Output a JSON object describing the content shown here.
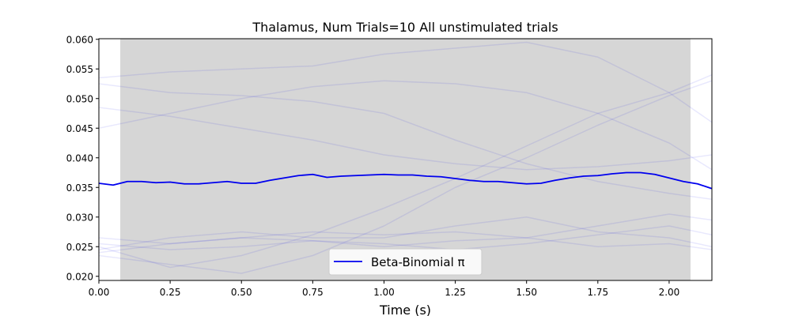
{
  "chart_data": {
    "type": "line",
    "title": "Thalamus, Num Trials=10 All unstimulated trials",
    "xlabel": "Time (s)",
    "ylabel": "",
    "xlim": [
      0.0,
      2.15
    ],
    "ylim": [
      0.0193,
      0.0601
    ],
    "xticks": [
      0.0,
      0.25,
      0.5,
      0.75,
      1.0,
      1.25,
      1.5,
      1.75,
      2.0
    ],
    "xtick_labels": [
      "0.00",
      "0.25",
      "0.50",
      "0.75",
      "1.00",
      "1.25",
      "1.50",
      "1.75",
      "2.00"
    ],
    "yticks": [
      0.02,
      0.025,
      0.03,
      0.035,
      0.04,
      0.045,
      0.05,
      0.055,
      0.06
    ],
    "ytick_labels": [
      "0.020",
      "0.025",
      "0.030",
      "0.035",
      "0.040",
      "0.045",
      "0.050",
      "0.055",
      "0.060"
    ],
    "grid": false,
    "legend_position": "lower-center",
    "shaded_region": {
      "x": [
        0.075,
        2.075
      ],
      "color": "#d6d6d6"
    },
    "series": [
      {
        "name": "Beta-Binomial π",
        "color": "#0000ee",
        "emphasis": true,
        "x": [
          0.0,
          0.05,
          0.1,
          0.15,
          0.2,
          0.25,
          0.3,
          0.35,
          0.4,
          0.45,
          0.5,
          0.55,
          0.6,
          0.65,
          0.7,
          0.75,
          0.8,
          0.85,
          0.9,
          0.95,
          1.0,
          1.05,
          1.1,
          1.15,
          1.2,
          1.25,
          1.3,
          1.35,
          1.4,
          1.45,
          1.5,
          1.55,
          1.6,
          1.65,
          1.7,
          1.75,
          1.8,
          1.85,
          1.9,
          1.95,
          2.0,
          2.05,
          2.1,
          2.15
        ],
        "values": [
          0.0357,
          0.0354,
          0.036,
          0.036,
          0.0358,
          0.0359,
          0.0356,
          0.0356,
          0.0358,
          0.036,
          0.0357,
          0.0357,
          0.0362,
          0.0366,
          0.037,
          0.0372,
          0.0367,
          0.0369,
          0.037,
          0.0371,
          0.0372,
          0.0371,
          0.0371,
          0.0369,
          0.0368,
          0.0365,
          0.0362,
          0.036,
          0.036,
          0.0358,
          0.0356,
          0.0357,
          0.0362,
          0.0366,
          0.0369,
          0.037,
          0.0373,
          0.0375,
          0.0375,
          0.0372,
          0.0366,
          0.036,
          0.0356,
          0.0348
        ]
      },
      {
        "color": "#0000ee",
        "emphasis": false,
        "x": [
          0.0,
          0.25,
          0.5,
          0.75,
          1.0,
          1.25,
          1.5,
          1.75,
          2.0,
          2.15
        ],
        "values": [
          0.0525,
          0.051,
          0.0505,
          0.0495,
          0.0475,
          0.043,
          0.039,
          0.036,
          0.034,
          0.033
        ]
      },
      {
        "color": "#0000ee",
        "emphasis": false,
        "x": [
          0.0,
          0.25,
          0.5,
          0.75,
          1.0,
          1.25,
          1.5,
          1.75,
          2.0,
          2.15
        ],
        "values": [
          0.0535,
          0.0545,
          0.055,
          0.0555,
          0.0575,
          0.0585,
          0.0595,
          0.057,
          0.051,
          0.046
        ]
      },
      {
        "color": "#0000ee",
        "emphasis": false,
        "x": [
          0.0,
          0.25,
          0.5,
          0.75,
          1.0,
          1.25,
          1.5,
          1.75,
          2.0,
          2.15
        ],
        "values": [
          0.045,
          0.0475,
          0.05,
          0.052,
          0.053,
          0.0525,
          0.051,
          0.0475,
          0.0425,
          0.038
        ]
      },
      {
        "color": "#0000ee",
        "emphasis": false,
        "x": [
          0.0,
          0.25,
          0.5,
          0.75,
          1.0,
          1.25,
          1.5,
          1.75,
          2.0,
          2.15
        ],
        "values": [
          0.0485,
          0.047,
          0.045,
          0.043,
          0.0405,
          0.039,
          0.038,
          0.0385,
          0.0395,
          0.0405
        ]
      },
      {
        "color": "#0000ee",
        "emphasis": false,
        "x": [
          0.0,
          0.25,
          0.5,
          0.75,
          1.0,
          1.25,
          1.5,
          1.75,
          2.0,
          2.15
        ],
        "values": [
          0.025,
          0.0215,
          0.0235,
          0.027,
          0.0315,
          0.0365,
          0.042,
          0.0475,
          0.051,
          0.054
        ]
      },
      {
        "color": "#0000ee",
        "emphasis": false,
        "x": [
          0.0,
          0.25,
          0.5,
          0.75,
          1.0,
          1.25,
          1.5,
          1.75,
          2.0,
          2.15
        ],
        "values": [
          0.0235,
          0.022,
          0.0205,
          0.0235,
          0.0285,
          0.035,
          0.04,
          0.0455,
          0.0505,
          0.053
        ]
      },
      {
        "color": "#0000ee",
        "emphasis": false,
        "x": [
          0.0,
          0.25,
          0.5,
          0.75,
          1.0,
          1.25,
          1.5,
          1.75,
          2.0,
          2.15
        ],
        "values": [
          0.024,
          0.0255,
          0.0265,
          0.0275,
          0.027,
          0.0275,
          0.0265,
          0.025,
          0.0255,
          0.0245
        ]
      },
      {
        "color": "#0000ee",
        "emphasis": false,
        "x": [
          0.0,
          0.25,
          0.5,
          0.75,
          1.0,
          1.25,
          1.5,
          1.75,
          2.0,
          2.15
        ],
        "values": [
          0.0245,
          0.0265,
          0.0275,
          0.0265,
          0.0265,
          0.0285,
          0.03,
          0.0275,
          0.0265,
          0.025
        ]
      },
      {
        "color": "#0000ee",
        "emphasis": false,
        "x": [
          0.0,
          0.25,
          0.5,
          0.75,
          1.0,
          1.25,
          1.5,
          1.75,
          2.0,
          2.15
        ],
        "values": [
          0.0255,
          0.0245,
          0.025,
          0.026,
          0.0255,
          0.0245,
          0.0255,
          0.027,
          0.0285,
          0.027
        ]
      },
      {
        "color": "#0000ee",
        "emphasis": false,
        "x": [
          0.0,
          0.25,
          0.5,
          0.75,
          1.0,
          1.25,
          1.5,
          1.75,
          2.0,
          2.15
        ],
        "values": [
          0.0265,
          0.0255,
          0.0265,
          0.026,
          0.025,
          0.026,
          0.0265,
          0.0285,
          0.0305,
          0.0295
        ]
      }
    ]
  }
}
